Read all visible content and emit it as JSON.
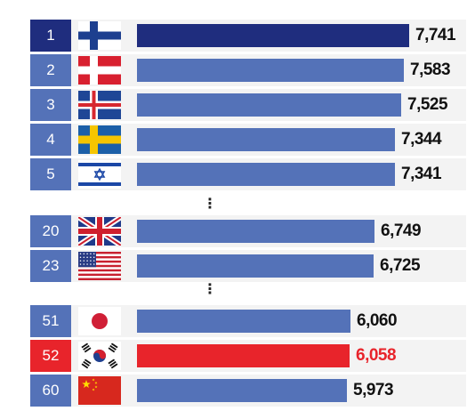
{
  "colors": {
    "highlight_rank": "#1f2d7e",
    "highlight_bar": "#1f2d7e",
    "normal": "#5472b8",
    "korea": "#e8242b",
    "value_text": "#111111",
    "korea_text": "#e8242b"
  },
  "chart_data": {
    "type": "bar",
    "orientation": "horizontal",
    "title": "",
    "xlabel": "",
    "ylabel": "",
    "grid": false,
    "legend": "none",
    "xlim": [
      0,
      7741
    ],
    "rows": [
      {
        "rank": "1",
        "flag": "finland",
        "value": 7741,
        "label": "7,741",
        "style": "highlight"
      },
      {
        "rank": "2",
        "flag": "denmark",
        "value": 7583,
        "label": "7,583",
        "style": "normal"
      },
      {
        "rank": "3",
        "flag": "iceland",
        "value": 7525,
        "label": "7,525",
        "style": "normal"
      },
      {
        "rank": "4",
        "flag": "sweden",
        "value": 7344,
        "label": "7,344",
        "style": "normal"
      },
      {
        "rank": "5",
        "flag": "israel",
        "value": 7341,
        "label": "7,341",
        "style": "normal"
      },
      {
        "gap": true,
        "text": "⋮"
      },
      {
        "rank": "20",
        "flag": "uk",
        "value": 6749,
        "label": "6,749",
        "style": "normal"
      },
      {
        "rank": "23",
        "flag": "usa",
        "value": 6725,
        "label": "6,725",
        "style": "normal"
      },
      {
        "gap": true,
        "text": "⋮"
      },
      {
        "rank": "51",
        "flag": "japan",
        "value": 6060,
        "label": "6,060",
        "style": "normal"
      },
      {
        "rank": "52",
        "flag": "south-korea",
        "value": 6058,
        "label": "6,058",
        "style": "korea"
      },
      {
        "rank": "60",
        "flag": "china",
        "value": 5973,
        "label": "5,973",
        "style": "normal"
      }
    ]
  }
}
